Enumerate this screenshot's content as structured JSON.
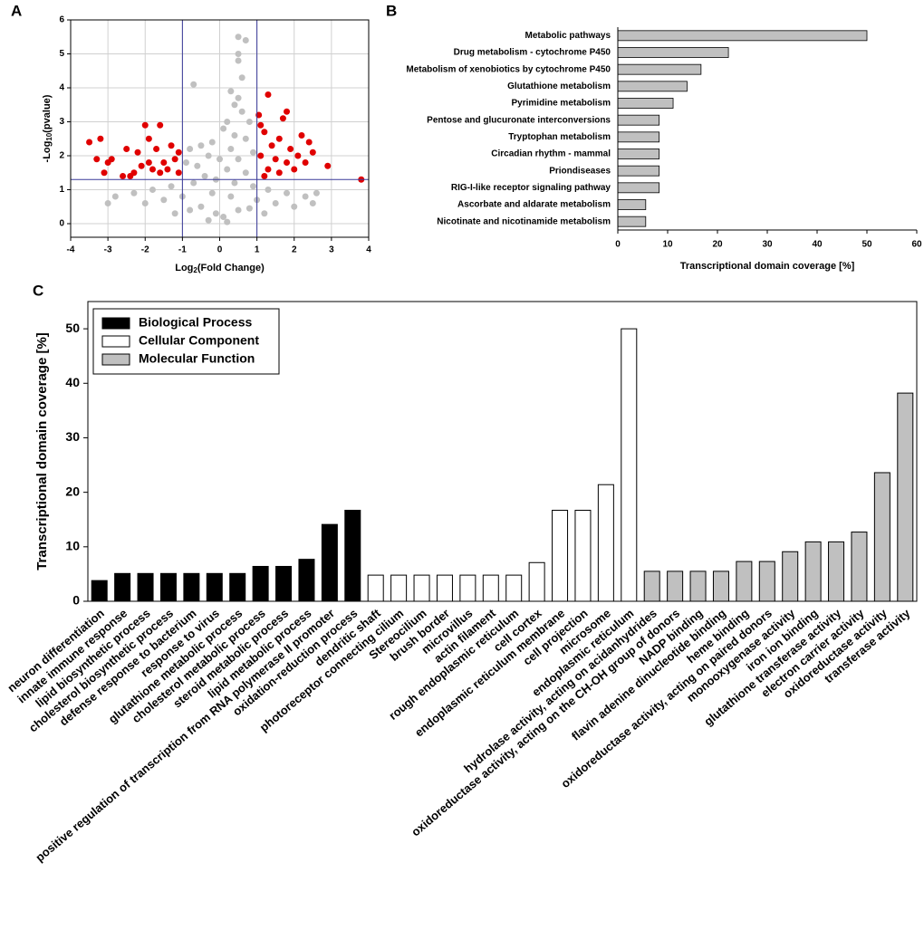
{
  "chart_data": [
    {
      "type": "scatter",
      "panel": "A",
      "xlabel": [
        "Log",
        "2",
        "(Fold Change)"
      ],
      "ylabel": [
        "-Log",
        "10",
        "(pvalue)"
      ],
      "xlim": [
        -4,
        4
      ],
      "ylim": [
        -0.4,
        6
      ],
      "xticks": [
        -4,
        -3,
        -2,
        -1,
        0,
        1,
        2,
        3,
        4
      ],
      "yticks": [
        0,
        1,
        2,
        3,
        4,
        5,
        6
      ],
      "grid": true,
      "vlines": [
        -1,
        1
      ],
      "hlines": [
        1.3
      ],
      "line_color": "#3a3a9a",
      "series": [
        {
          "color": "#c0c0c0",
          "x": [
            0.5,
            0.7,
            0.5,
            0.5,
            0.6,
            -0.7,
            0.3,
            0.5,
            0.4,
            0.6,
            0.2,
            0.8,
            0.1,
            0.4,
            0.7,
            -0.2,
            -0.5,
            -0.8,
            0.3,
            0.9,
            -0.3,
            0.0,
            0.5,
            -0.9,
            -0.6,
            0.2,
            0.7,
            -0.4,
            -0.1,
            0.4,
            -0.7,
            0.9,
            -1.3,
            1.3,
            -1.8,
            1.8,
            -2.3,
            2.3,
            -0.2,
            0.3,
            -1.0,
            1.0,
            -1.5,
            1.5,
            -2.0,
            2.0,
            -2.8,
            2.6,
            -3.0,
            2.5,
            -0.5,
            0.5,
            -0.1,
            0.1,
            -0.3,
            0.2,
            -1.2,
            1.2,
            -0.8,
            0.8
          ],
          "y": [
            5.5,
            5.4,
            5.0,
            4.8,
            4.3,
            4.1,
            3.9,
            3.7,
            3.5,
            3.3,
            3.0,
            3.0,
            2.8,
            2.6,
            2.5,
            2.4,
            2.3,
            2.2,
            2.2,
            2.1,
            2.0,
            1.9,
            1.9,
            1.8,
            1.7,
            1.6,
            1.5,
            1.4,
            1.3,
            1.2,
            1.2,
            1.1,
            1.1,
            1.0,
            1.0,
            0.9,
            0.9,
            0.8,
            0.9,
            0.8,
            0.8,
            0.7,
            0.7,
            0.6,
            0.6,
            0.5,
            0.8,
            0.9,
            0.6,
            0.6,
            0.5,
            0.4,
            0.3,
            0.2,
            0.1,
            0.05,
            0.3,
            0.3,
            0.4,
            0.45
          ]
        },
        {
          "color": "#e00000",
          "x": [
            -3.5,
            -3.3,
            -3.2,
            -3.1,
            -3.0,
            -2.9,
            -2.6,
            -2.5,
            -2.4,
            -2.3,
            -2.2,
            -2.1,
            -2.0,
            -1.9,
            -1.9,
            -1.8,
            -1.7,
            -1.6,
            -1.6,
            -1.5,
            -1.4,
            -1.3,
            -1.2,
            -1.1,
            -1.1,
            1.05,
            1.1,
            1.2,
            1.3,
            1.3,
            1.4,
            1.5,
            1.6,
            1.7,
            1.8,
            1.8,
            1.9,
            2.0,
            2.1,
            2.2,
            2.3,
            2.4,
            2.5,
            2.9,
            3.8,
            1.1,
            1.2,
            1.6
          ],
          "y": [
            2.4,
            1.9,
            2.5,
            1.5,
            1.8,
            1.9,
            1.4,
            2.2,
            1.4,
            1.5,
            2.1,
            1.7,
            2.9,
            1.8,
            2.5,
            1.6,
            2.2,
            1.5,
            2.9,
            1.8,
            1.6,
            2.3,
            1.9,
            1.5,
            2.1,
            3.2,
            2.0,
            2.7,
            3.8,
            1.6,
            2.3,
            1.9,
            2.5,
            3.1,
            1.8,
            3.3,
            2.2,
            1.6,
            2.0,
            2.6,
            1.8,
            2.4,
            2.1,
            1.7,
            1.3,
            2.9,
            1.4,
            1.5
          ]
        }
      ]
    },
    {
      "type": "bar",
      "orientation": "horizontal",
      "panel": "B",
      "xlabel": "Transcriptional domain coverage [%]",
      "color": "#c0c0c0",
      "categories": [
        "Metabolic pathways",
        "Drug metabolism - cytochrome P450",
        "Metabolism of xenobiotics by cytochrome P450",
        "Glutathione metabolism",
        "Pyrimidine metabolism",
        "Pentose and glucuronate interconversions",
        "Tryptophan metabolism",
        "Circadian rhythm - mammal",
        "Priondiseases",
        "RIG-I-like receptor signaling pathway",
        "Ascorbate and aldarate metabolism",
        "Nicotinate and nicotinamide metabolism"
      ],
      "values": [
        50,
        22.2,
        16.7,
        13.9,
        11.1,
        8.3,
        8.3,
        8.3,
        8.3,
        8.3,
        5.6,
        5.6
      ],
      "xlim": [
        0,
        60
      ],
      "xticks": [
        0,
        10,
        20,
        30,
        40,
        50,
        60
      ]
    },
    {
      "type": "bar",
      "orientation": "vertical",
      "panel": "C",
      "ylabel": "Transcriptional domain coverage [%]",
      "legend": "top-left",
      "ylim": [
        0,
        55
      ],
      "yticks": [
        0,
        10,
        20,
        30,
        40,
        50
      ],
      "categories": [
        "neuron differentiation",
        "innate immune response",
        "lipid biosynthetic process",
        "cholesterol biosynthetic process",
        "defense response to bacterium",
        "response to virus",
        "glutathione metabolic process",
        "cholesterol metabolic process",
        "steroid metabolic process",
        "lipid metabolic process",
        "positive regulation of transcription from RNA polymerase II promoter",
        "oxidation-reduction process",
        "dendritic shaft",
        "photoreceptor connecting cilium",
        "Stereocilium",
        "brush border",
        "microvillus",
        "actin filament",
        "rough endoplasmic reticulum",
        "cell cortex",
        "endoplasmic reticulum membrane",
        "cell projection",
        "microsome",
        "endoplasmic reticulum",
        "hydrolase activity, acting on acidanhydrides",
        "oxidoreductase activity, acting on the CH-OH group of donors",
        "NADP binding",
        "flavin adenine dinucleotide binding",
        "heme binding",
        "oxidoreductase activity, acting on paired donors",
        "monooxygenase activity",
        "iron ion binding",
        "glutathione transferase activity",
        "electron carrier activity",
        "oxidoreductase activity",
        "transferase activity"
      ],
      "series": [
        {
          "name": "Biological Process",
          "color": "#000000",
          "values": [
            3.8,
            5.1,
            5.1,
            5.1,
            5.1,
            5.1,
            5.1,
            6.4,
            6.4,
            7.7,
            14.1,
            16.7,
            null,
            null,
            null,
            null,
            null,
            null,
            null,
            null,
            null,
            null,
            null,
            null,
            null,
            null,
            null,
            null,
            null,
            null,
            null,
            null,
            null,
            null,
            null,
            null
          ]
        },
        {
          "name": "Cellular Component",
          "color": "#ffffff",
          "values": [
            null,
            null,
            null,
            null,
            null,
            null,
            null,
            null,
            null,
            null,
            null,
            null,
            4.8,
            4.8,
            4.8,
            4.8,
            4.8,
            4.8,
            4.8,
            7.1,
            16.7,
            16.7,
            21.4,
            50,
            null,
            null,
            null,
            null,
            null,
            null,
            null,
            null,
            null,
            null,
            null,
            null
          ]
        },
        {
          "name": "Molecular Function",
          "color": "#c0c0c0",
          "values": [
            null,
            null,
            null,
            null,
            null,
            null,
            null,
            null,
            null,
            null,
            null,
            null,
            null,
            null,
            null,
            null,
            null,
            null,
            null,
            null,
            null,
            null,
            null,
            null,
            5.5,
            5.5,
            5.5,
            5.5,
            7.3,
            7.3,
            9.1,
            10.9,
            10.9,
            12.7,
            23.6,
            38.2
          ]
        }
      ]
    }
  ]
}
